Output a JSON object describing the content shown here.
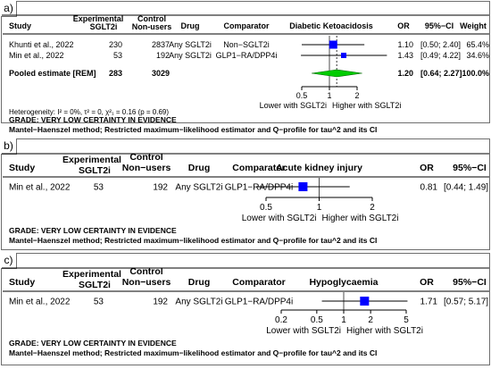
{
  "chart_data": [
    {
      "type": "forest",
      "panel_label": "a)",
      "outcome": "Diabetic Ketoacidosis",
      "columns": {
        "study": "Study",
        "exp_top": "Experimental",
        "exp_bottom": "SGLT2i",
        "ctrl_top": "Control",
        "ctrl_bottom": "Non-users",
        "drug": "Drug",
        "comparator": "Comparator",
        "or": "OR",
        "ci": "95%−CI",
        "weight": "Weight"
      },
      "studies": [
        {
          "study": "Khunti et al., 2022",
          "experimental": "230",
          "control": "2837",
          "drug": "Any SGLT2i",
          "comparator": "Non−SGLT2i",
          "or": 1.1,
          "lower": 0.5,
          "upper": 2.4,
          "or_text": "1.10",
          "ci_text": "[0.50; 2.40]",
          "weight": "65.4%"
        },
        {
          "study": "Min et al., 2022",
          "experimental": "53",
          "control": "192",
          "drug": "Any SGLT2i",
          "comparator": "GLP1−RA/DPP4i",
          "or": 1.43,
          "lower": 0.49,
          "upper": 4.22,
          "or_text": "1.43",
          "ci_text": "[0.49; 4.22]",
          "weight": "34.6%"
        }
      ],
      "pooled": {
        "label": "Pooled estimate [REM]",
        "experimental": "283",
        "control": "3029",
        "or": 1.2,
        "lower": 0.64,
        "upper": 2.27,
        "or_text": "1.20",
        "ci_text": "[0.64; 2.27]",
        "weight": "100.0%"
      },
      "axis": {
        "scale": "log",
        "ticks": [
          0.5,
          1,
          2
        ],
        "tick_labels": [
          "0.5",
          "1",
          "2"
        ],
        "left_label": "Lower with SGLT2i",
        "right_label": "Higher with SGLT2i"
      },
      "heterogeneity": "Heterogeneity: I² = 0%, τ² = 0, χ²₁ = 0.16 (p = 0.69)",
      "grade": "GRADE: VERY LOW CERTAINTY IN EVIDENCE",
      "method": "Mantel−Haenszel method; Restricted maximum−likelihood estimator and Q−profile for tau^2 and its CI"
    },
    {
      "type": "forest",
      "panel_label": "b)",
      "outcome": "Acute kidney injury",
      "columns": {
        "study": "Study",
        "exp_top": "Experimental",
        "exp_bottom": "SGLT2i",
        "ctrl_top": "Control",
        "ctrl_bottom": "Non−users",
        "drug": "Drug",
        "comparator": "Comparator",
        "or": "OR",
        "ci": "95%−CI"
      },
      "studies": [
        {
          "study": "Min et al., 2022",
          "experimental": "53",
          "control": "192",
          "drug": "Any SGLT2i",
          "comparator": "GLP1−RA/DPP4i",
          "or": 0.81,
          "lower": 0.44,
          "upper": 1.49,
          "or_text": "0.81",
          "ci_text": "[0.44; 1.49]"
        }
      ],
      "axis": {
        "scale": "log",
        "ticks": [
          0.5,
          1,
          2
        ],
        "tick_labels": [
          "0.5",
          "1",
          "2"
        ],
        "left_label": "Lower with SGLT2i",
        "right_label": "Higher with SGLT2i"
      },
      "grade": "GRADE: VERY LOW CERTAINTY IN EVIDENCE",
      "method": "Mantel−Haenszel method; Restricted maximum−likelihood estimator and Q−profile for tau^2 and its CI"
    },
    {
      "type": "forest",
      "panel_label": "c)",
      "outcome": "Hypoglycaemia",
      "columns": {
        "study": "Study",
        "exp_top": "Experimental",
        "exp_bottom": "SGLT2i",
        "ctrl_top": "Control",
        "ctrl_bottom": "Non−users",
        "drug": "Drug",
        "comparator": "Comparator",
        "or": "OR",
        "ci": "95%−CI"
      },
      "studies": [
        {
          "study": "Min et al., 2022",
          "experimental": "53",
          "control": "192",
          "drug": "Any SGLT2i",
          "comparator": "GLP1−RA/DPP4i",
          "or": 1.71,
          "lower": 0.57,
          "upper": 5.17,
          "or_text": "1.71",
          "ci_text": "[0.57; 5.17]"
        }
      ],
      "axis": {
        "scale": "log",
        "ticks": [
          0.2,
          0.5,
          1,
          2,
          5
        ],
        "tick_labels": [
          "0.2",
          "0.5",
          "1",
          "2",
          "5"
        ],
        "left_label": "Lower with SGLT2i",
        "right_label": "Higher with SGLT2i"
      },
      "grade": "GRADE: VERY LOW CERTAINTY IN EVIDENCE",
      "method": "Mantel−Haenszel method; Restricted maximum−likelihood estimator and Q−profile for tau^2 and its CI"
    }
  ],
  "colors": {
    "square": "#0000ff",
    "diamond": "#00cc00",
    "diamond_stroke": "#006600",
    "line": "#000000",
    "frame": "#6e6e6e"
  }
}
